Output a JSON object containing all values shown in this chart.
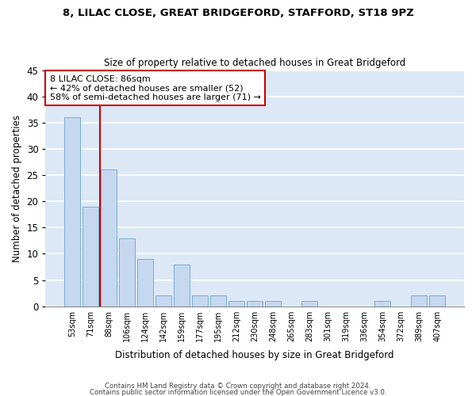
{
  "title1": "8, LILAC CLOSE, GREAT BRIDGEFORD, STAFFORD, ST18 9PZ",
  "title2": "Size of property relative to detached houses in Great Bridgeford",
  "xlabel": "Distribution of detached houses by size in Great Bridgeford",
  "ylabel": "Number of detached properties",
  "categories": [
    "53sqm",
    "71sqm",
    "88sqm",
    "106sqm",
    "124sqm",
    "142sqm",
    "159sqm",
    "177sqm",
    "195sqm",
    "212sqm",
    "230sqm",
    "248sqm",
    "265sqm",
    "283sqm",
    "301sqm",
    "319sqm",
    "336sqm",
    "354sqm",
    "372sqm",
    "389sqm",
    "407sqm"
  ],
  "values": [
    36,
    19,
    26,
    13,
    9,
    2,
    8,
    2,
    2,
    1,
    1,
    1,
    0,
    1,
    0,
    0,
    0,
    1,
    0,
    2,
    2
  ],
  "bar_color": "#c5d8ef",
  "bar_edge_color": "#7aadd4",
  "vline_color": "#cc0000",
  "annotation_line1": "8 LILAC CLOSE: 86sqm",
  "annotation_line2": "← 42% of detached houses are smaller (52)",
  "annotation_line3": "58% of semi-detached houses are larger (71) →",
  "annotation_box_color": "#ffffff",
  "annotation_box_edge": "#cc0000",
  "ylim": [
    0,
    45
  ],
  "yticks": [
    0,
    5,
    10,
    15,
    20,
    25,
    30,
    35,
    40,
    45
  ],
  "background_color": "#dce8f5",
  "grid_color": "#ffffff",
  "footer1": "Contains HM Land Registry data © Crown copyright and database right 2024.",
  "footer2": "Contains public sector information licensed under the Open Government Licence v3.0."
}
